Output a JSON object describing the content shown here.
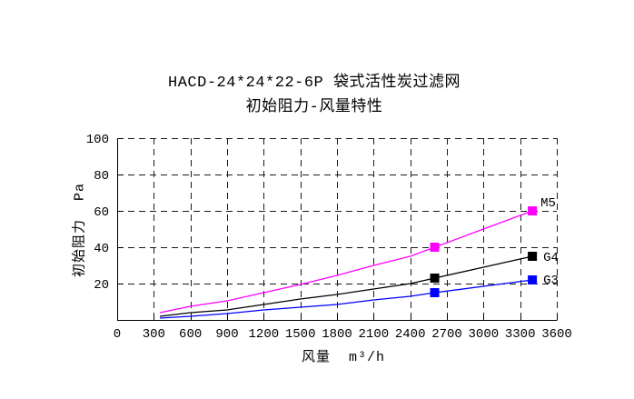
{
  "chart_data": {
    "type": "line",
    "title": "HACD-24*24*22-6P 袋式活性炭过滤网",
    "subtitle": "初始阻力-风量特性",
    "xlabel": "风量  m³/h",
    "ylabel": "初始阻力  Pa",
    "xlim": [
      0,
      3600
    ],
    "ylim": [
      0,
      100
    ],
    "x_ticks": [
      0,
      300,
      600,
      900,
      1200,
      1500,
      1800,
      2100,
      2400,
      2700,
      3000,
      3300,
      3600
    ],
    "y_ticks": [
      20,
      40,
      60,
      80,
      100
    ],
    "grid": "dashed",
    "grid_color": "#1a1a1a",
    "legend_position": "end-of-line-labels",
    "series": [
      {
        "name": "M5",
        "color": "#ff00ff",
        "x": [
          350,
          600,
          900,
          1200,
          1500,
          1800,
          2100,
          2400,
          2600,
          3000,
          3400
        ],
        "y": [
          4,
          7.5,
          10.5,
          15,
          19.5,
          24.5,
          30,
          35,
          40,
          50,
          60
        ],
        "markers": [
          {
            "x": 2600,
            "y": 40
          },
          {
            "x": 3400,
            "y": 60
          }
        ]
      },
      {
        "name": "G4",
        "color": "#000000",
        "x": [
          350,
          600,
          900,
          1200,
          1500,
          1800,
          2100,
          2400,
          2600,
          3000,
          3400
        ],
        "y": [
          2,
          4,
          5.5,
          8.5,
          11.5,
          14,
          17,
          20,
          23,
          29,
          35
        ],
        "markers": [
          {
            "x": 2600,
            "y": 23
          },
          {
            "x": 3400,
            "y": 35
          }
        ]
      },
      {
        "name": "G3",
        "color": "#0000ff",
        "x": [
          350,
          600,
          900,
          1200,
          1500,
          1800,
          2100,
          2400,
          2600,
          3000,
          3400
        ],
        "y": [
          1,
          2,
          3.5,
          5.5,
          7,
          8.5,
          11,
          13,
          15,
          18.5,
          22
        ],
        "markers": [
          {
            "x": 2600,
            "y": 15
          },
          {
            "x": 3400,
            "y": 22
          }
        ]
      }
    ]
  }
}
